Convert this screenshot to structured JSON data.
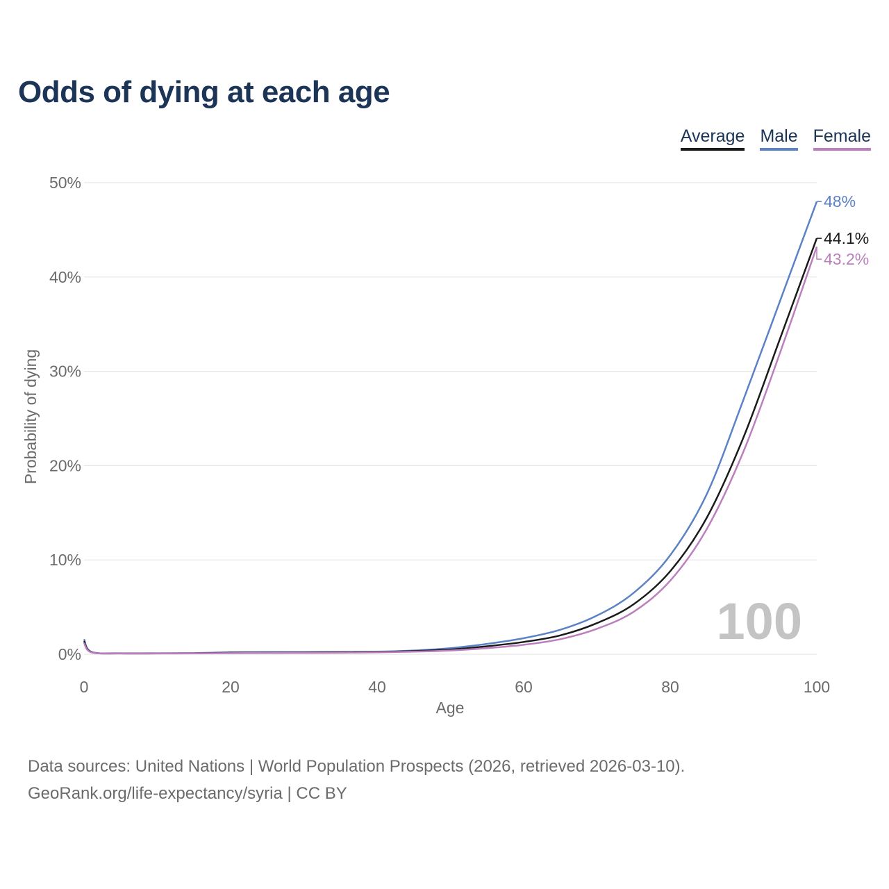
{
  "title": "Odds of dying at each age",
  "legend": [
    {
      "label": "Average",
      "color": "#1a1a1a"
    },
    {
      "label": "Male",
      "color": "#5b82c4"
    },
    {
      "label": "Female",
      "color": "#bb7fbe"
    }
  ],
  "year_watermark": "100",
  "footer": {
    "line1": "Data sources: United Nations | World Population Prospects (2026, retrieved 2026-03-10).",
    "line2": "GeoRank.org/life-expectancy/syria | CC BY"
  },
  "chart_data": {
    "type": "line",
    "title": "Odds of dying at each age",
    "xlabel": "Age",
    "ylabel": "Probability of dying",
    "xlim": [
      0,
      100
    ],
    "ylim": [
      0,
      50
    ],
    "xticks": [
      0,
      20,
      40,
      60,
      80,
      100
    ],
    "yticks": [
      0,
      10,
      20,
      30,
      40,
      50
    ],
    "ytick_labels": [
      "0%",
      "10%",
      "20%",
      "30%",
      "40%",
      "50%"
    ],
    "grid": true,
    "legend_position": "top-right",
    "x": [
      0,
      1,
      5,
      10,
      15,
      20,
      25,
      30,
      35,
      40,
      45,
      50,
      55,
      60,
      65,
      70,
      75,
      80,
      85,
      90,
      95,
      100
    ],
    "series": [
      {
        "name": "Male",
        "color": "#5b82c4",
        "end_label": "48%",
        "values": [
          1.6,
          0.25,
          0.1,
          0.1,
          0.12,
          0.2,
          0.22,
          0.22,
          0.25,
          0.28,
          0.4,
          0.65,
          1.1,
          1.7,
          2.6,
          4.1,
          6.5,
          10.5,
          17.0,
          27.0,
          37.5,
          48.0
        ]
      },
      {
        "name": "Average",
        "color": "#1a1a1a",
        "end_label": "44.1%",
        "values": [
          1.4,
          0.22,
          0.09,
          0.09,
          0.1,
          0.16,
          0.18,
          0.19,
          0.21,
          0.24,
          0.33,
          0.5,
          0.85,
          1.3,
          2.0,
          3.3,
          5.3,
          8.8,
          14.5,
          23.0,
          33.5,
          44.1
        ]
      },
      {
        "name": "Female",
        "color": "#bb7fbe",
        "end_label": "43.2%",
        "values": [
          1.2,
          0.2,
          0.08,
          0.08,
          0.09,
          0.12,
          0.14,
          0.15,
          0.17,
          0.2,
          0.27,
          0.4,
          0.65,
          1.0,
          1.6,
          2.7,
          4.5,
          7.8,
          13.3,
          21.5,
          32.0,
          43.2
        ]
      }
    ]
  }
}
